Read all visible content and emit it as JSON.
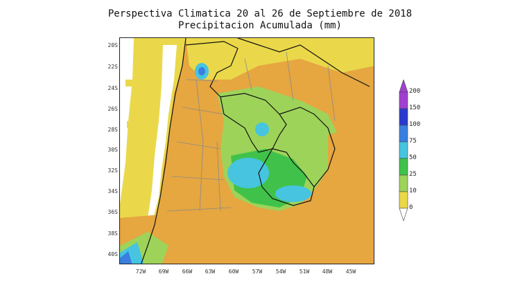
{
  "title_line1": "Perspectiva Climatica 20 al 26 de Septiembre de 2018",
  "title_line2": "Precipitacion Acumulada (mm)",
  "lat_labels": [
    "20S",
    "22S",
    "24S",
    "26S",
    "28S",
    "30S",
    "32S",
    "34S",
    "36S",
    "38S",
    "40S"
  ],
  "lon_labels": [
    "72W",
    "69W",
    "66W",
    "63W",
    "60W",
    "57W",
    "54W",
    "51W",
    "48W",
    "45W"
  ],
  "colorbar_levels": [
    "0",
    "10",
    "25",
    "50",
    "75",
    "100",
    "150",
    "200"
  ],
  "colorbar_colors": [
    "#ead84a",
    "#e6a640",
    "#9ed35a",
    "#40c24a",
    "#46c4e0",
    "#3a7fe0",
    "#2a3ad0",
    "#a040d0"
  ],
  "colors": {
    "land_dry": "#e6a640",
    "light": "#ead84a",
    "green_light": "#9ed35a",
    "green": "#40c24a",
    "cyan": "#46c4e0",
    "blue": "#3a7fe0",
    "ocean_white": "#ffffff"
  }
}
